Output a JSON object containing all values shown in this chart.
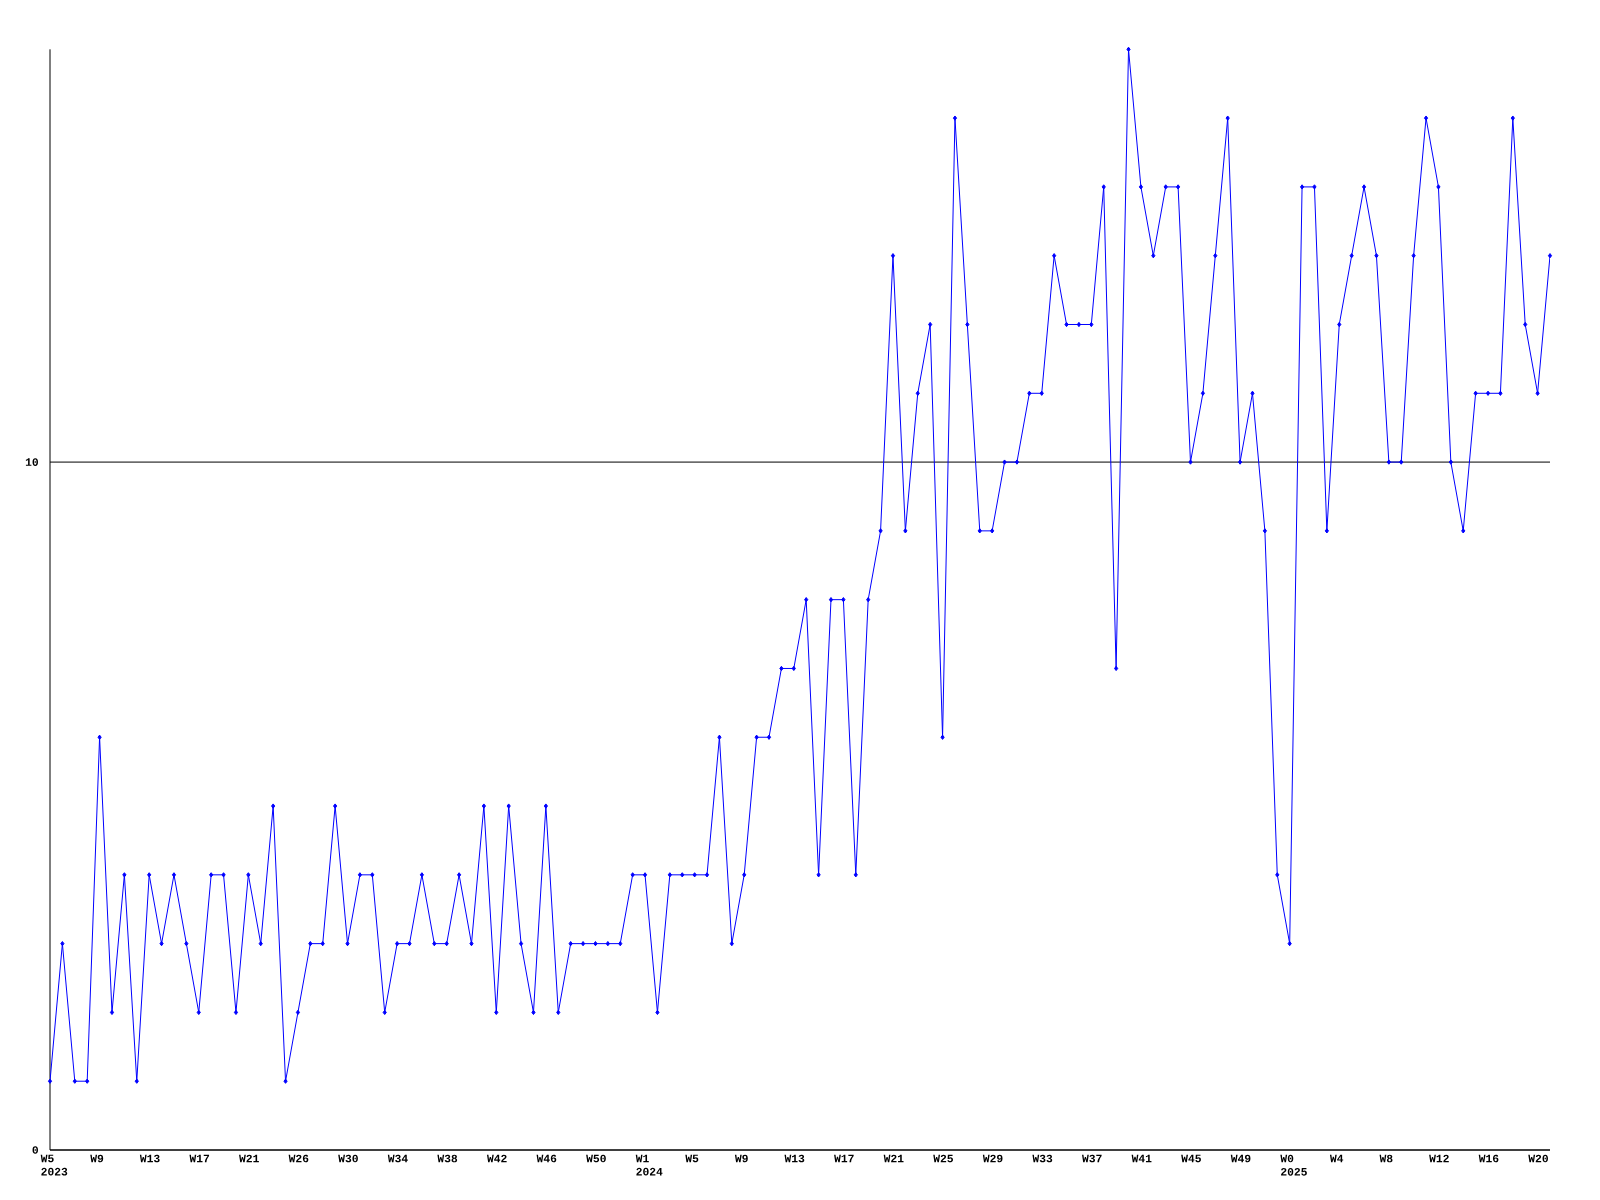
{
  "chart_data": {
    "type": "line",
    "categories": [
      "W5 2023",
      null,
      null,
      null,
      "W9",
      null,
      null,
      null,
      "W13",
      null,
      null,
      null,
      "W17",
      null,
      null,
      null,
      "W21",
      null,
      null,
      null,
      "W26",
      null,
      null,
      null,
      "W30",
      null,
      null,
      null,
      "W34",
      null,
      null,
      null,
      "W38",
      null,
      null,
      null,
      "W42",
      null,
      null,
      null,
      "W46",
      null,
      null,
      null,
      "W50",
      null,
      null,
      null,
      "W1 2024",
      null,
      null,
      null,
      "W5",
      null,
      null,
      null,
      "W9",
      null,
      null,
      null,
      "W13",
      null,
      null,
      null,
      "W17",
      null,
      null,
      null,
      "W21",
      null,
      null,
      null,
      "W25",
      null,
      null,
      null,
      "W29",
      null,
      null,
      null,
      "W33",
      null,
      null,
      null,
      "W37",
      null,
      null,
      null,
      "W41",
      null,
      null,
      null,
      "W45",
      null,
      null,
      null,
      "W49",
      null,
      null,
      null,
      "W0 2025",
      null,
      null,
      null,
      "W4",
      null,
      null,
      null,
      "W8",
      null,
      null,
      null,
      "W12",
      null,
      null,
      null,
      "W16",
      null,
      null,
      null,
      "W20",
      null
    ],
    "series": [
      {
        "color": "#0000ff",
        "values": [
          1,
          3,
          1,
          1,
          6,
          2,
          4,
          1,
          4,
          3,
          4,
          3,
          2,
          4,
          4,
          2,
          4,
          3,
          5,
          1,
          2,
          3,
          3,
          5,
          3,
          4,
          4,
          2,
          3,
          3,
          4,
          3,
          3,
          4,
          3,
          5,
          2,
          5,
          3,
          2,
          5,
          2,
          3,
          3,
          3,
          3,
          3,
          4,
          4,
          2,
          4,
          4,
          4,
          4,
          6,
          3,
          4,
          6,
          6,
          7,
          7,
          8,
          4,
          8,
          8,
          4,
          8,
          9,
          13,
          9,
          11,
          12,
          6,
          15,
          12,
          9,
          9,
          10,
          10,
          11,
          11,
          13,
          12,
          12,
          12,
          14,
          7,
          16,
          14,
          13,
          14,
          14,
          10,
          11,
          13,
          15,
          10,
          11,
          9,
          4,
          3,
          14,
          14,
          9,
          12,
          13,
          14,
          13,
          10,
          10,
          13,
          15,
          14,
          10,
          9,
          11,
          11,
          11,
          15,
          12,
          11,
          13
        ]
      }
    ],
    "ylim": [
      0,
      16
    ],
    "yticks": [
      0,
      10
    ],
    "grid": "y",
    "marker": "diamond",
    "line_style": "solid"
  }
}
